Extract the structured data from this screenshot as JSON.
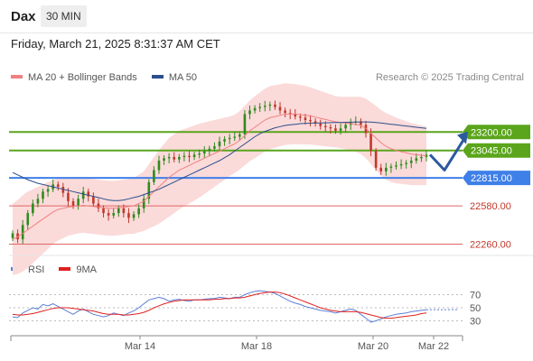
{
  "header": {
    "symbol": "Dax",
    "timeframe": "30 MIN",
    "timestamp": "Friday, March 21, 2025 8:31:37 AM CET",
    "credit": "Research © 2025 Trading Central"
  },
  "legend": {
    "price": [
      {
        "label": "MA 20 + Bollinger Bands",
        "color": "#f08080"
      },
      {
        "label": "MA 50",
        "color": "#2c4f8c"
      }
    ],
    "indicator": [
      {
        "label": "RSI",
        "color": "#5b7fd6"
      },
      {
        "label": "9MA",
        "color": "#e02020"
      }
    ]
  },
  "colors": {
    "up": "#2e8b1e",
    "down": "#c0392b",
    "band_fill": "#fbdada",
    "ma20": "#f08080",
    "ma50": "#2c4f8c",
    "resistance": "#5aa51b",
    "pivot": "#3f7fe8",
    "support": "#e06666",
    "arrow": "#2c5aa0",
    "rsi": "#5b7fd6",
    "rsi_ma": "#e02020"
  },
  "chart_data": {
    "type": "candlestick",
    "x_ticks": [
      "Mar 14",
      "Mar 18",
      "Mar 20",
      "Mar 22"
    ],
    "price_range": [
      22150,
      23550
    ],
    "levels": [
      {
        "value": 23200,
        "label": "23200.00",
        "kind": "resistance",
        "style": "solid"
      },
      {
        "value": 23045,
        "label": "23045.00",
        "kind": "resistance",
        "style": "solid"
      },
      {
        "value": 22815,
        "label": "22815.00",
        "kind": "pivot",
        "style": "solid"
      },
      {
        "value": 22580,
        "label": "22580.00",
        "kind": "support",
        "style": "thin"
      },
      {
        "value": 22260,
        "label": "22260.00",
        "kind": "support",
        "style": "thin"
      }
    ],
    "closes": [
      22350,
      22300,
      22420,
      22520,
      22600,
      22640,
      22700,
      22720,
      22760,
      22740,
      22690,
      22620,
      22580,
      22640,
      22700,
      22660,
      22600,
      22560,
      22520,
      22500,
      22520,
      22560,
      22520,
      22480,
      22510,
      22560,
      22640,
      22780,
      22880,
      22960,
      22980,
      22990,
      22970,
      22990,
      23000,
      22990,
      23010,
      23020,
      23040,
      23060,
      23080,
      23120,
      23140,
      23150,
      23160,
      23180,
      23350,
      23380,
      23400,
      23410,
      23420,
      23430,
      23410,
      23380,
      23360,
      23350,
      23330,
      23320,
      23300,
      23290,
      23270,
      23250,
      23240,
      23230,
      23210,
      23230,
      23260,
      23280,
      23290,
      23260,
      23190,
      23040,
      22900,
      22870,
      22900,
      22910,
      22920,
      22930,
      22940,
      22960,
      22980,
      22990,
      23010
    ],
    "ma20": [
      22300,
      22320,
      22350,
      22380,
      22410,
      22440,
      22470,
      22500,
      22530,
      22550,
      22560,
      22570,
      22575,
      22580,
      22585,
      22580,
      22575,
      22570,
      22565,
      22560,
      22560,
      22565,
      22570,
      22575,
      22580,
      22600,
      22620,
      22660,
      22700,
      22740,
      22780,
      22820,
      22850,
      22880,
      22900,
      22920,
      22940,
      22960,
      22980,
      23000,
      23020,
      23040,
      23060,
      23080,
      23100,
      23130,
      23170,
      23210,
      23240,
      23270,
      23300,
      23320,
      23330,
      23340,
      23350,
      23350,
      23350,
      23345,
      23340,
      23335,
      23325,
      23315,
      23305,
      23295,
      23285,
      23280,
      23275,
      23270,
      23265,
      23255,
      23230,
      23190,
      23150,
      23110,
      23080,
      23060,
      23045,
      23035,
      23025,
      23015,
      23010,
      23005,
      23000
    ],
    "ma50": [
      22860,
      22840,
      22820,
      22800,
      22785,
      22770,
      22760,
      22750,
      22740,
      22730,
      22720,
      22710,
      22700,
      22690,
      22680,
      22670,
      22660,
      22650,
      22640,
      22630,
      22625,
      22625,
      22630,
      22640,
      22650,
      22660,
      22675,
      22690,
      22705,
      22720,
      22740,
      22760,
      22780,
      22800,
      22820,
      22840,
      22860,
      22880,
      22900,
      22920,
      22940,
      22960,
      22985,
      23010,
      23040,
      23070,
      23100,
      23130,
      23160,
      23185,
      23205,
      23220,
      23235,
      23245,
      23255,
      23260,
      23265,
      23270,
      23272,
      23274,
      23275,
      23276,
      23277,
      23278,
      23279,
      23280,
      23281,
      23282,
      23283,
      23284,
      23284,
      23283,
      23280,
      23275,
      23270,
      23265,
      23260,
      23255,
      23250,
      23245,
      23240,
      23235,
      23230
    ],
    "band_width": [
      300,
      310,
      320,
      320,
      310,
      300,
      290,
      280,
      270,
      260,
      250,
      240,
      235,
      230,
      230,
      230,
      230,
      230,
      230,
      230,
      230,
      230,
      230,
      230,
      235,
      240,
      250,
      270,
      290,
      310,
      320,
      330,
      330,
      330,
      325,
      320,
      315,
      310,
      300,
      290,
      280,
      270,
      260,
      250,
      245,
      245,
      250,
      255,
      260,
      262,
      264,
      265,
      262,
      260,
      258,
      255,
      252,
      250,
      245,
      240,
      235,
      230,
      225,
      220,
      215,
      215,
      220,
      225,
      230,
      240,
      250,
      260,
      270,
      275,
      280,
      280,
      275,
      270,
      265,
      260,
      255,
      250,
      245
    ],
    "rsi": {
      "ticks": [
        70,
        50,
        30
      ],
      "range": [
        10,
        90
      ],
      "rsi": [
        36,
        35,
        42,
        46,
        50,
        48,
        55,
        53,
        56,
        52,
        48,
        44,
        40,
        45,
        48,
        44,
        40,
        38,
        36,
        38,
        42,
        40,
        38,
        42,
        45,
        50,
        56,
        62,
        64,
        66,
        64,
        60,
        62,
        63,
        61,
        60,
        62,
        62,
        63,
        64,
        64,
        66,
        65,
        64,
        66,
        66,
        70,
        73,
        75,
        76,
        75,
        74,
        72,
        68,
        64,
        60,
        57,
        55,
        52,
        50,
        48,
        46,
        45,
        44,
        42,
        44,
        46,
        48,
        46,
        40,
        34,
        28,
        30,
        33,
        36,
        38,
        40,
        41,
        42,
        44,
        45,
        46,
        47
      ],
      "ma9": [
        40,
        39,
        39,
        40,
        41,
        43,
        45,
        47,
        49,
        50,
        50,
        50,
        49,
        48,
        47,
        46,
        45,
        43,
        41,
        40,
        40,
        40,
        39,
        39,
        40,
        41,
        43,
        46,
        50,
        53,
        56,
        58,
        60,
        61,
        62,
        62,
        62,
        62,
        62,
        62,
        63,
        63,
        64,
        64,
        65,
        65,
        66,
        68,
        70,
        72,
        73,
        74,
        74,
        73,
        71,
        68,
        65,
        62,
        59,
        56,
        53,
        50,
        48,
        46,
        45,
        44,
        44,
        44,
        44,
        43,
        41,
        39,
        37,
        35,
        34,
        34,
        35,
        36,
        37,
        38,
        39,
        41,
        42
      ]
    }
  }
}
